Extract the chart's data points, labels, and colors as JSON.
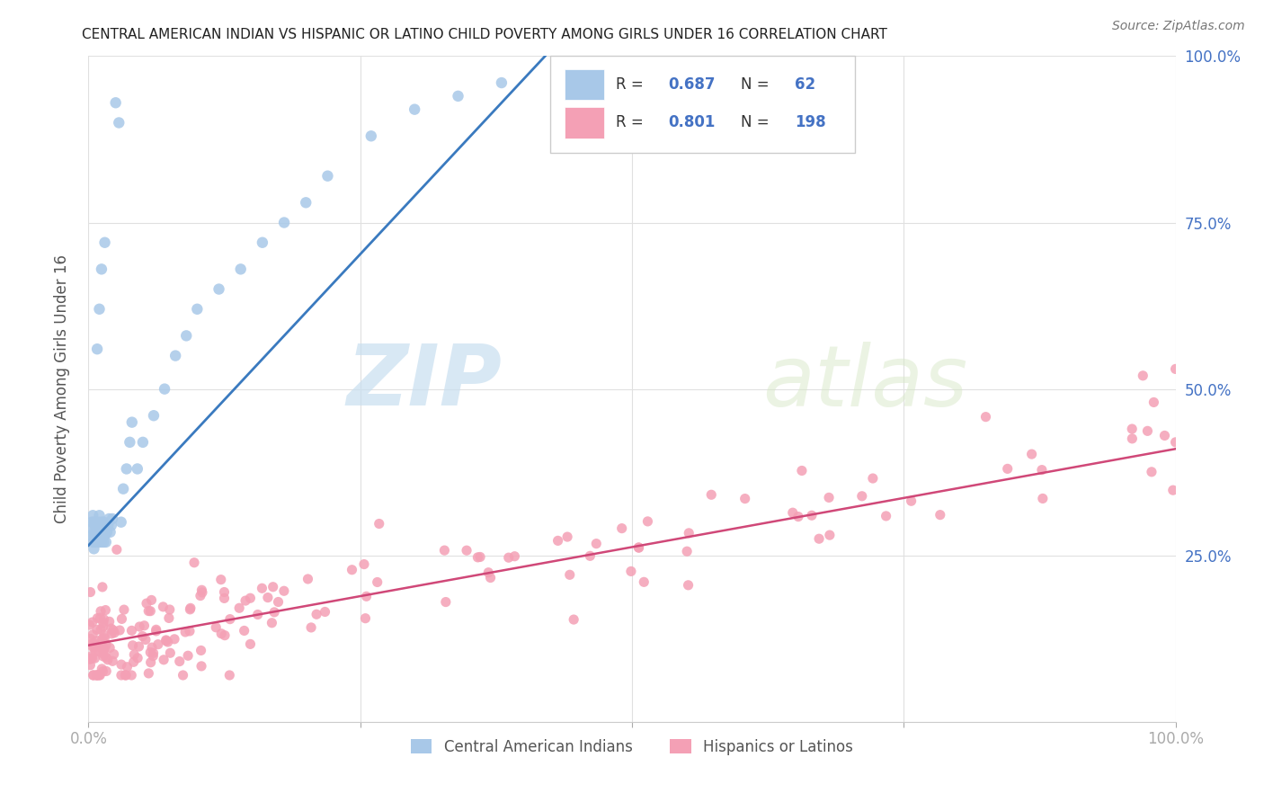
{
  "title": "CENTRAL AMERICAN INDIAN VS HISPANIC OR LATINO CHILD POVERTY AMONG GIRLS UNDER 16 CORRELATION CHART",
  "source": "Source: ZipAtlas.com",
  "ylabel": "Child Poverty Among Girls Under 16",
  "blue_R": 0.687,
  "blue_N": 62,
  "pink_R": 0.801,
  "pink_N": 198,
  "blue_color": "#a8c8e8",
  "pink_color": "#f4a0b5",
  "blue_line_color": "#3a7abf",
  "pink_line_color": "#d04878",
  "legend_blue_label": "Central American Indians",
  "legend_pink_label": "Hispanics or Latinos",
  "watermark_zip": "ZIP",
  "watermark_atlas": "atlas",
  "title_color": "#222222",
  "blue_line_x0": 0.0,
  "blue_line_y0": 0.265,
  "blue_line_x1": 0.42,
  "blue_line_y1": 1.0,
  "pink_line_x0": 0.0,
  "pink_line_y0": 0.115,
  "pink_line_x1": 1.0,
  "pink_line_y1": 0.41,
  "xlim": [
    0,
    1
  ],
  "ylim": [
    0,
    1
  ],
  "x_ticks": [
    0.0,
    0.25,
    0.5,
    0.75,
    1.0
  ],
  "x_tick_labels": [
    "0.0%",
    "",
    "",
    "",
    "100.0%"
  ],
  "y_ticks_right": [
    0.25,
    0.5,
    0.75,
    1.0
  ],
  "y_tick_labels_right": [
    "25.0%",
    "50.0%",
    "75.0%",
    "100.0%"
  ],
  "grid_color": "#e0e0e0",
  "tick_color": "#aaaaaa"
}
